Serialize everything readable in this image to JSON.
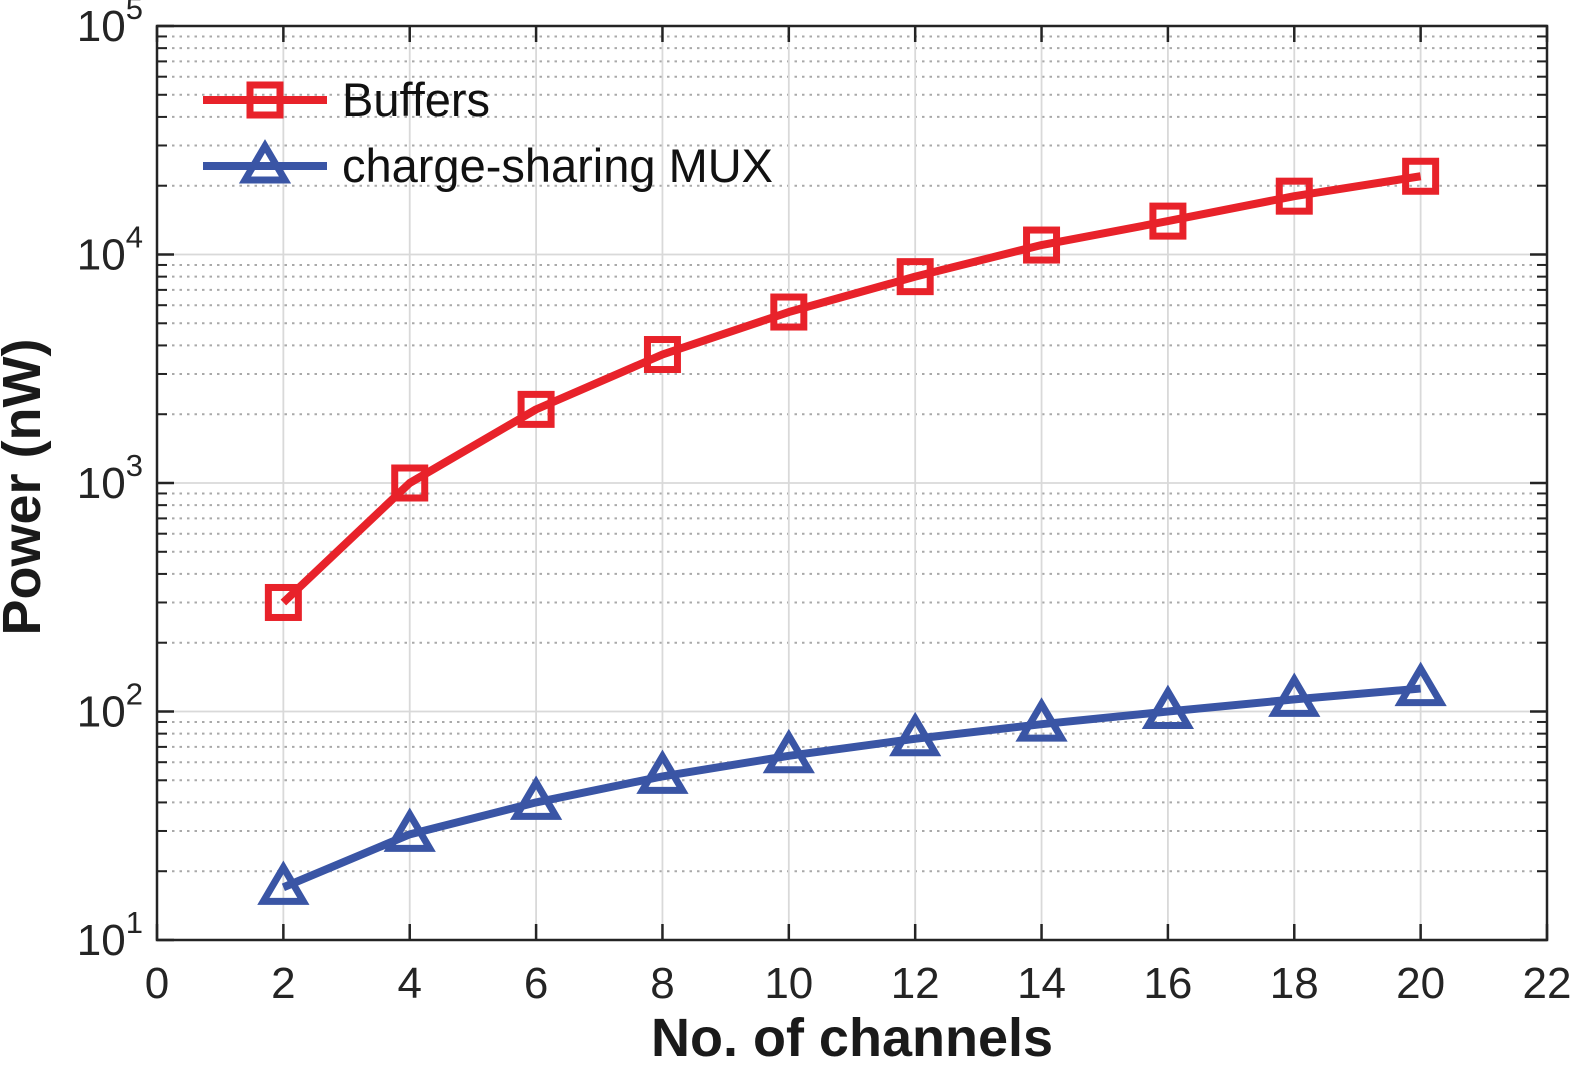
{
  "chart_data": {
    "type": "line",
    "title": "",
    "xlabel": "No. of channels",
    "ylabel": "Power (nW)",
    "xlim": [
      0,
      22
    ],
    "x_tick_step": 2,
    "x_tick_labels": [
      "0",
      "2",
      "4",
      "6",
      "8",
      "10",
      "12",
      "14",
      "16",
      "18",
      "20",
      "22"
    ],
    "y_scale": "log",
    "ylim": [
      10,
      100000
    ],
    "y_tick_base": "10",
    "y_tick_exponents": [
      "1",
      "2",
      "3",
      "4",
      "5"
    ],
    "grid": {
      "major": "solid",
      "minor": "dotted"
    },
    "legend_position": "top-left-inside-no-box",
    "x": [
      2,
      4,
      6,
      8,
      10,
      12,
      14,
      16,
      18,
      20
    ],
    "series": [
      {
        "name": "Buffers",
        "marker": "square",
        "color": "#e8222a",
        "values": [
          300,
          1000,
          2100,
          3650,
          5600,
          8000,
          11000,
          14000,
          18000,
          22000
        ]
      },
      {
        "name": "charge-sharing MUX",
        "marker": "triangle-up",
        "color": "#3a55a5",
        "values": [
          17,
          29,
          40,
          52,
          64,
          76,
          88,
          100,
          113,
          126
        ]
      }
    ],
    "styles": {
      "grid_major_color": "#d9d9d9",
      "grid_minor_color": "#a9a9a9",
      "axis_color": "#242424",
      "text_color": "#1a1a1a"
    }
  }
}
